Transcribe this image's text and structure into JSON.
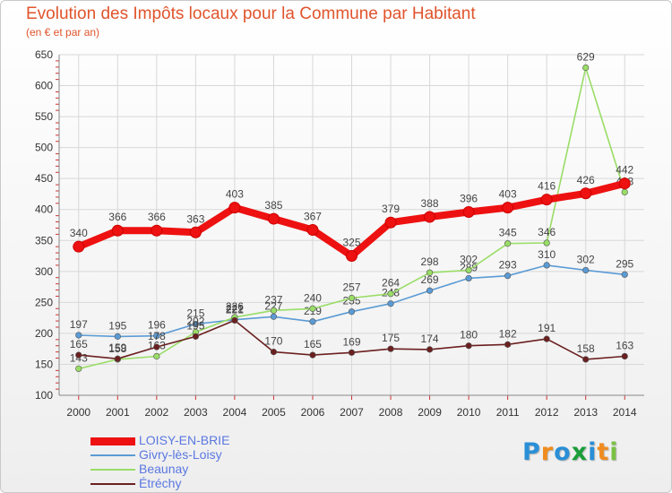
{
  "header": {
    "title": "Evolution des Impôts locaux pour la Commune par Habitant",
    "subtitle": "(en € et par an)"
  },
  "brand": {
    "letters": [
      "P",
      "r",
      "o",
      "x",
      "i",
      "t",
      "i"
    ],
    "colors": [
      "#2a8fd6",
      "#f08c1e",
      "#2a8fd6",
      "#1a9e3a",
      "#2a8fd6",
      "#f08c1e",
      "#7ac142"
    ]
  },
  "chart_data": {
    "type": "line",
    "title": "Evolution des Impôts locaux pour la Commune par Habitant",
    "subtitle": "(en € et par an)",
    "x": [
      "2000",
      "2001",
      "2002",
      "2003",
      "2004",
      "2005",
      "2006",
      "2007",
      "2008",
      "2009",
      "2010",
      "2011",
      "2012",
      "2013",
      "2014"
    ],
    "ylim": [
      100,
      650
    ],
    "yticks": [
      100,
      150,
      200,
      250,
      300,
      350,
      400,
      450,
      500,
      550,
      600,
      650
    ],
    "grid": true,
    "legend_position": "bottom-left",
    "series": [
      {
        "name": "LOISY-EN-BRIE",
        "color": "#ee1111",
        "emphasis": true,
        "values": [
          340,
          366,
          366,
          363,
          403,
          385,
          367,
          325,
          379,
          388,
          396,
          403,
          416,
          426,
          442
        ]
      },
      {
        "name": "Givry-lès-Loisy",
        "color": "#5b9bd5",
        "values": [
          197,
          195,
          196,
          215,
          222,
          227,
          219,
          235,
          248,
          269,
          289,
          293,
          310,
          302,
          295
        ]
      },
      {
        "name": "Beaunay",
        "color": "#99dd66",
        "values": [
          143,
          158,
          163,
          202,
          226,
          237,
          240,
          257,
          264,
          298,
          302,
          345,
          346,
          629,
          428
        ]
      },
      {
        "name": "Étréchy",
        "color": "#6b1f1f",
        "values": [
          165,
          159,
          178,
          195,
          221,
          170,
          165,
          169,
          175,
          174,
          180,
          182,
          191,
          158,
          163
        ]
      }
    ]
  }
}
